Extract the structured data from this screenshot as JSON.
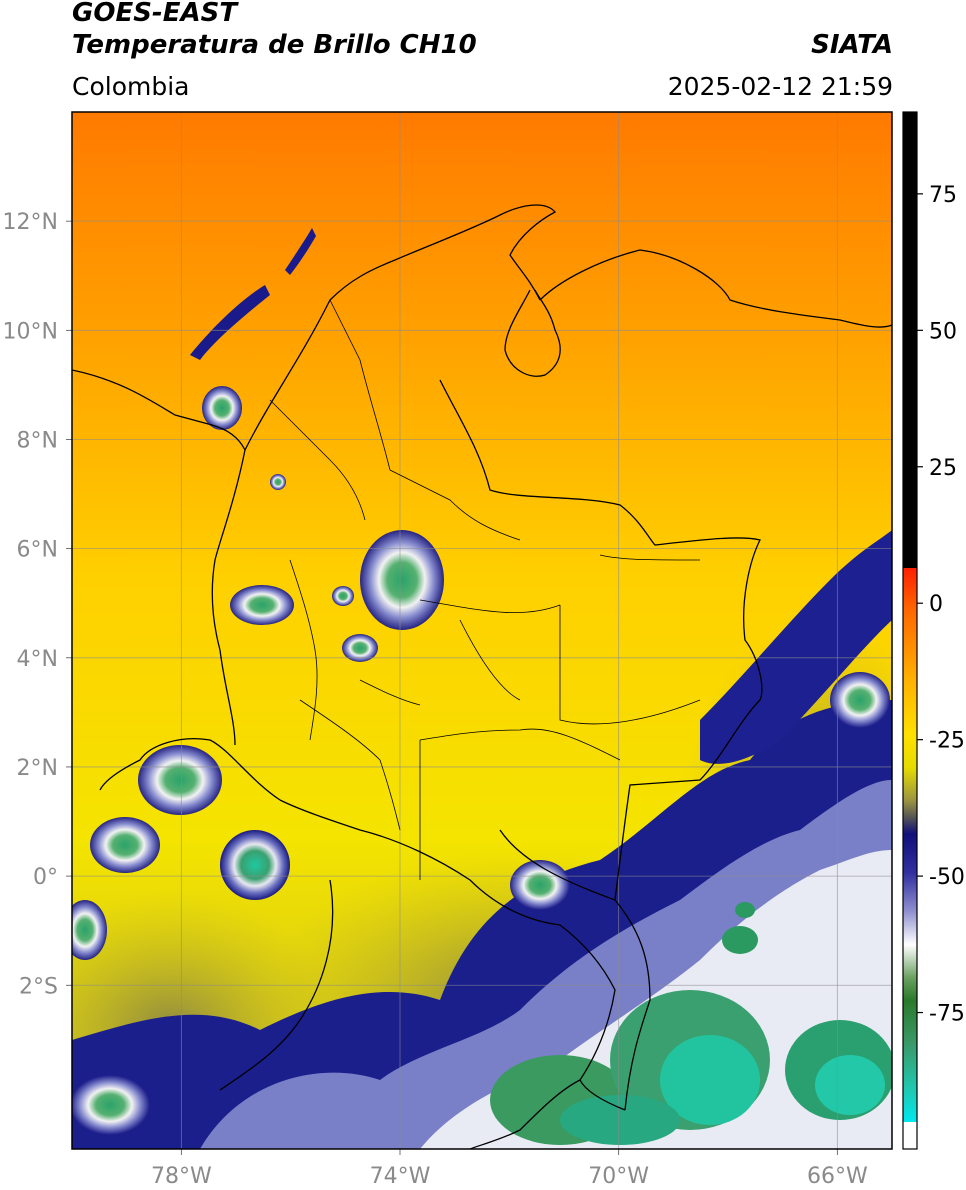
{
  "header": {
    "satellite": "GOES-EAST",
    "product": "Temperatura de Brillo CH10",
    "region": "Colombia",
    "agency": "SIATA",
    "datetime": "2025-02-12 21:59"
  },
  "map": {
    "lon_range": [
      -80,
      -65
    ],
    "lat_range": [
      -5,
      14
    ],
    "lon_ticks": [
      {
        "v": -78,
        "label": "78°W"
      },
      {
        "v": -74,
        "label": "74°W"
      },
      {
        "v": -70,
        "label": "70°W"
      },
      {
        "v": -66,
        "label": "66°W"
      }
    ],
    "lat_ticks": [
      {
        "v": 12,
        "label": "12°N"
      },
      {
        "v": 10,
        "label": "10°N"
      },
      {
        "v": 8,
        "label": "8°N"
      },
      {
        "v": 6,
        "label": "6°N"
      },
      {
        "v": 4,
        "label": "4°N"
      },
      {
        "v": 2,
        "label": "2°N"
      },
      {
        "v": 0,
        "label": "0°"
      },
      {
        "v": -2,
        "label": "2°S"
      }
    ],
    "grid": true
  },
  "colorbar": {
    "range": [
      -100,
      90
    ],
    "ticks": [
      {
        "v": 75,
        "label": "75"
      },
      {
        "v": 50,
        "label": "50"
      },
      {
        "v": 25,
        "label": "25"
      },
      {
        "v": 0,
        "label": "0"
      },
      {
        "v": -25,
        "label": "-25"
      },
      {
        "v": -50,
        "label": "-50"
      },
      {
        "v": -75,
        "label": "-75"
      }
    ]
  }
}
